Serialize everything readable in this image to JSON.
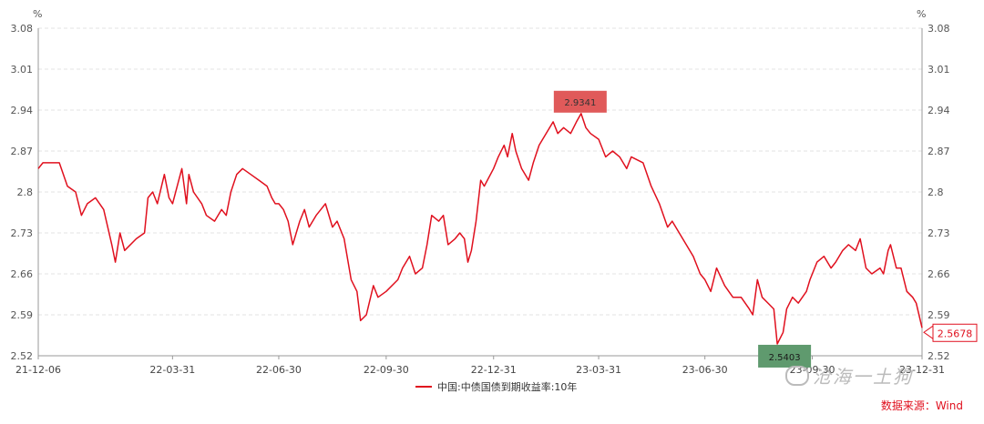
{
  "chart_data": {
    "type": "line",
    "unit_left": "%",
    "unit_right": "%",
    "y_ticks": [
      "3.08",
      "3.01",
      "2.94",
      "2.87",
      "2.8",
      "2.73",
      "2.66",
      "2.59",
      "2.52"
    ],
    "x_ticks": [
      "21-12-06",
      "22-03-31",
      "22-06-30",
      "22-09-30",
      "22-12-31",
      "23-03-31",
      "23-06-30",
      "23-09-30",
      "23-12-31"
    ],
    "ylim": [
      2.52,
      3.08
    ],
    "grid": true,
    "legend_position": "bottom-center",
    "series": [
      {
        "name": "中国:中债国债到期收益率:10年",
        "color": "#e0101e",
        "points": [
          [
            "2021-12-06",
            2.84
          ],
          [
            "2021-12-10",
            2.85
          ],
          [
            "2021-12-17",
            2.85
          ],
          [
            "2021-12-24",
            2.85
          ],
          [
            "2021-12-31",
            2.81
          ],
          [
            "2022-01-07",
            2.8
          ],
          [
            "2022-01-12",
            2.76
          ],
          [
            "2022-01-17",
            2.78
          ],
          [
            "2022-01-24",
            2.79
          ],
          [
            "2022-01-31",
            2.77
          ],
          [
            "2022-02-07",
            2.71
          ],
          [
            "2022-02-10",
            2.68
          ],
          [
            "2022-02-14",
            2.73
          ],
          [
            "2022-02-18",
            2.7
          ],
          [
            "2022-02-28",
            2.72
          ],
          [
            "2022-03-07",
            2.73
          ],
          [
            "2022-03-10",
            2.79
          ],
          [
            "2022-03-14",
            2.8
          ],
          [
            "2022-03-18",
            2.78
          ],
          [
            "2022-03-24",
            2.83
          ],
          [
            "2022-03-28",
            2.79
          ],
          [
            "2022-03-31",
            2.78
          ],
          [
            "2022-04-04",
            2.81
          ],
          [
            "2022-04-08",
            2.84
          ],
          [
            "2022-04-12",
            2.78
          ],
          [
            "2022-04-14",
            2.83
          ],
          [
            "2022-04-18",
            2.8
          ],
          [
            "2022-04-25",
            2.78
          ],
          [
            "2022-04-29",
            2.76
          ],
          [
            "2022-05-06",
            2.75
          ],
          [
            "2022-05-12",
            2.77
          ],
          [
            "2022-05-16",
            2.76
          ],
          [
            "2022-05-20",
            2.8
          ],
          [
            "2022-05-25",
            2.83
          ],
          [
            "2022-05-30",
            2.84
          ],
          [
            "2022-06-06",
            2.83
          ],
          [
            "2022-06-13",
            2.82
          ],
          [
            "2022-06-20",
            2.81
          ],
          [
            "2022-06-24",
            2.79
          ],
          [
            "2022-06-27",
            2.78
          ],
          [
            "2022-06-30",
            2.78
          ],
          [
            "2022-07-04",
            2.77
          ],
          [
            "2022-07-08",
            2.75
          ],
          [
            "2022-07-12",
            2.71
          ],
          [
            "2022-07-18",
            2.75
          ],
          [
            "2022-07-22",
            2.77
          ],
          [
            "2022-07-26",
            2.74
          ],
          [
            "2022-08-01",
            2.76
          ],
          [
            "2022-08-05",
            2.77
          ],
          [
            "2022-08-09",
            2.78
          ],
          [
            "2022-08-15",
            2.74
          ],
          [
            "2022-08-19",
            2.75
          ],
          [
            "2022-08-25",
            2.72
          ],
          [
            "2022-08-31",
            2.65
          ],
          [
            "2022-09-05",
            2.63
          ],
          [
            "2022-09-08",
            2.58
          ],
          [
            "2022-09-13",
            2.59
          ],
          [
            "2022-09-19",
            2.64
          ],
          [
            "2022-09-23",
            2.62
          ],
          [
            "2022-09-30",
            2.63
          ],
          [
            "2022-10-10",
            2.65
          ],
          [
            "2022-10-14",
            2.67
          ],
          [
            "2022-10-20",
            2.69
          ],
          [
            "2022-10-25",
            2.66
          ],
          [
            "2022-10-31",
            2.67
          ],
          [
            "2022-11-04",
            2.71
          ],
          [
            "2022-11-08",
            2.76
          ],
          [
            "2022-11-14",
            2.75
          ],
          [
            "2022-11-18",
            2.76
          ],
          [
            "2022-11-22",
            2.71
          ],
          [
            "2022-11-28",
            2.72
          ],
          [
            "2022-12-02",
            2.73
          ],
          [
            "2022-12-06",
            2.72
          ],
          [
            "2022-12-09",
            2.68
          ],
          [
            "2022-12-12",
            2.7
          ],
          [
            "2022-12-16",
            2.75
          ],
          [
            "2022-12-20",
            2.82
          ],
          [
            "2022-12-23",
            2.81
          ],
          [
            "2022-12-31",
            2.84
          ],
          [
            "2023-01-04",
            2.86
          ],
          [
            "2023-01-09",
            2.88
          ],
          [
            "2023-01-12",
            2.86
          ],
          [
            "2023-01-16",
            2.9
          ],
          [
            "2023-01-19",
            2.87
          ],
          [
            "2023-01-24",
            2.84
          ],
          [
            "2023-01-30",
            2.82
          ],
          [
            "2023-02-03",
            2.85
          ],
          [
            "2023-02-08",
            2.88
          ],
          [
            "2023-02-14",
            2.9
          ],
          [
            "2023-02-20",
            2.92
          ],
          [
            "2023-02-24",
            2.9
          ],
          [
            "2023-03-01",
            2.91
          ],
          [
            "2023-03-07",
            2.9
          ],
          [
            "2023-03-12",
            2.92
          ],
          [
            "2023-03-16",
            2.9341
          ],
          [
            "2023-03-20",
            2.91
          ],
          [
            "2023-03-24",
            2.9
          ],
          [
            "2023-03-31",
            2.89
          ],
          [
            "2023-04-06",
            2.86
          ],
          [
            "2023-04-12",
            2.87
          ],
          [
            "2023-04-18",
            2.86
          ],
          [
            "2023-04-24",
            2.84
          ],
          [
            "2023-04-28",
            2.86
          ],
          [
            "2023-05-08",
            2.85
          ],
          [
            "2023-05-15",
            2.81
          ],
          [
            "2023-05-22",
            2.78
          ],
          [
            "2023-05-29",
            2.74
          ],
          [
            "2023-06-02",
            2.75
          ],
          [
            "2023-06-08",
            2.73
          ],
          [
            "2023-06-14",
            2.71
          ],
          [
            "2023-06-20",
            2.69
          ],
          [
            "2023-06-26",
            2.66
          ],
          [
            "2023-06-30",
            2.65
          ],
          [
            "2023-07-05",
            2.63
          ],
          [
            "2023-07-10",
            2.67
          ],
          [
            "2023-07-17",
            2.64
          ],
          [
            "2023-07-24",
            2.62
          ],
          [
            "2023-07-31",
            2.62
          ],
          [
            "2023-08-07",
            2.6
          ],
          [
            "2023-08-10",
            2.59
          ],
          [
            "2023-08-14",
            2.65
          ],
          [
            "2023-08-18",
            2.62
          ],
          [
            "2023-08-23",
            2.61
          ],
          [
            "2023-08-28",
            2.6
          ],
          [
            "2023-08-31",
            2.5403
          ],
          [
            "2023-09-05",
            2.56
          ],
          [
            "2023-09-08",
            2.6
          ],
          [
            "2023-09-13",
            2.62
          ],
          [
            "2023-09-18",
            2.61
          ],
          [
            "2023-09-25",
            2.63
          ],
          [
            "2023-09-28",
            2.65
          ],
          [
            "2023-10-04",
            2.68
          ],
          [
            "2023-10-10",
            2.69
          ],
          [
            "2023-10-16",
            2.67
          ],
          [
            "2023-10-20",
            2.68
          ],
          [
            "2023-10-26",
            2.7
          ],
          [
            "2023-10-31",
            2.71
          ],
          [
            "2023-11-06",
            2.7
          ],
          [
            "2023-11-10",
            2.72
          ],
          [
            "2023-11-15",
            2.67
          ],
          [
            "2023-11-20",
            2.66
          ],
          [
            "2023-11-27",
            2.67
          ],
          [
            "2023-11-30",
            2.66
          ],
          [
            "2023-12-04",
            2.7
          ],
          [
            "2023-12-06",
            2.71
          ],
          [
            "2023-12-11",
            2.67
          ],
          [
            "2023-12-15",
            2.67
          ],
          [
            "2023-12-20",
            2.63
          ],
          [
            "2023-12-25",
            2.62
          ],
          [
            "2023-12-28",
            2.61
          ],
          [
            "2024-01-02",
            2.5678
          ]
        ]
      }
    ],
    "annotations": {
      "max_label": "2.9341",
      "max_color": "#e05a5a",
      "min_label": "2.5403",
      "min_color": "#5f9a6e",
      "last_label": "2.5678"
    }
  },
  "source_note": "数据来源：Wind",
  "watermark_text": "沧海一土狗"
}
